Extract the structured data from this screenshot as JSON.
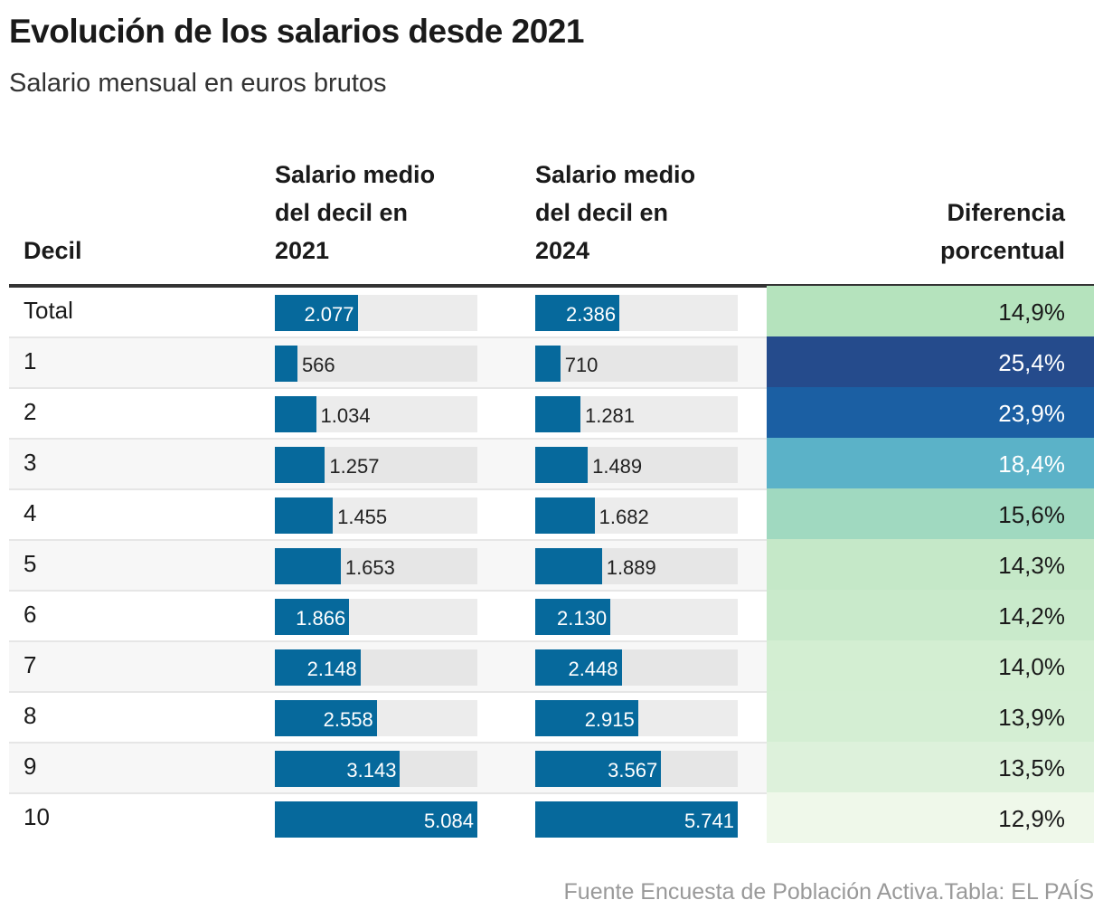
{
  "title": "Evolución de los salarios desde 2021",
  "subtitle": "Salario mensual en euros brutos",
  "source": "Fuente Encuesta de Población Activa.Tabla: EL PAÍS",
  "chart_data": {
    "type": "table",
    "columns": {
      "decil": "Decil",
      "s2021": [
        "Salario medio",
        "del decil en",
        "2021"
      ],
      "s2024": [
        "Salario medio",
        "del decil en",
        "2024"
      ],
      "diff": [
        "Diferencia",
        "porcentual"
      ]
    },
    "bar_color": "#06699c",
    "rows": [
      {
        "decil": "Total",
        "s2021": 2077,
        "s2021_label": "2.077",
        "s2024": 2386,
        "s2024_label": "2.386",
        "diff": "14,9%",
        "diff_color": "#b5e3bd",
        "diff_text_color": "#1a1a1a"
      },
      {
        "decil": "1",
        "s2021": 566,
        "s2021_label": "566",
        "s2024": 710,
        "s2024_label": "710",
        "diff": "25,4%",
        "diff_color": "#254b8c",
        "diff_text_color": "#ffffff"
      },
      {
        "decil": "2",
        "s2021": 1034,
        "s2021_label": "1.034",
        "s2024": 1281,
        "s2024_label": "1.281",
        "diff": "23,9%",
        "diff_color": "#1b5fa3",
        "diff_text_color": "#ffffff"
      },
      {
        "decil": "3",
        "s2021": 1257,
        "s2021_label": "1.257",
        "s2024": 1489,
        "s2024_label": "1.489",
        "diff": "18,4%",
        "diff_color": "#5bb2c8",
        "diff_text_color": "#ffffff"
      },
      {
        "decil": "4",
        "s2021": 1455,
        "s2021_label": "1.455",
        "s2024": 1682,
        "s2024_label": "1.682",
        "diff": "15,6%",
        "diff_color": "#a0d9c0",
        "diff_text_color": "#1a1a1a"
      },
      {
        "decil": "5",
        "s2021": 1653,
        "s2021_label": "1.653",
        "s2024": 1889,
        "s2024_label": "1.889",
        "diff": "14,3%",
        "diff_color": "#c5e8c8",
        "diff_text_color": "#1a1a1a"
      },
      {
        "decil": "6",
        "s2021": 1866,
        "s2021_label": "1.866",
        "s2024": 2130,
        "s2024_label": "2.130",
        "diff": "14,2%",
        "diff_color": "#c9eacb",
        "diff_text_color": "#1a1a1a"
      },
      {
        "decil": "7",
        "s2021": 2148,
        "s2021_label": "2.148",
        "s2024": 2448,
        "s2024_label": "2.448",
        "diff": "14,0%",
        "diff_color": "#d3eed2",
        "diff_text_color": "#1a1a1a"
      },
      {
        "decil": "8",
        "s2021": 2558,
        "s2021_label": "2.558",
        "s2024": 2915,
        "s2024_label": "2.915",
        "diff": "13,9%",
        "diff_color": "#d4eed3",
        "diff_text_color": "#1a1a1a"
      },
      {
        "decil": "9",
        "s2021": 3143,
        "s2021_label": "3.143",
        "s2024": 3567,
        "s2024_label": "3.567",
        "diff": "13,5%",
        "diff_color": "#ddf1db",
        "diff_text_color": "#1a1a1a"
      },
      {
        "decil": "10",
        "s2021": 5084,
        "s2021_label": "5.084",
        "s2024": 5741,
        "s2024_label": "5.741",
        "diff": "12,9%",
        "diff_color": "#eff8ea",
        "diff_text_color": "#1a1a1a"
      }
    ]
  }
}
